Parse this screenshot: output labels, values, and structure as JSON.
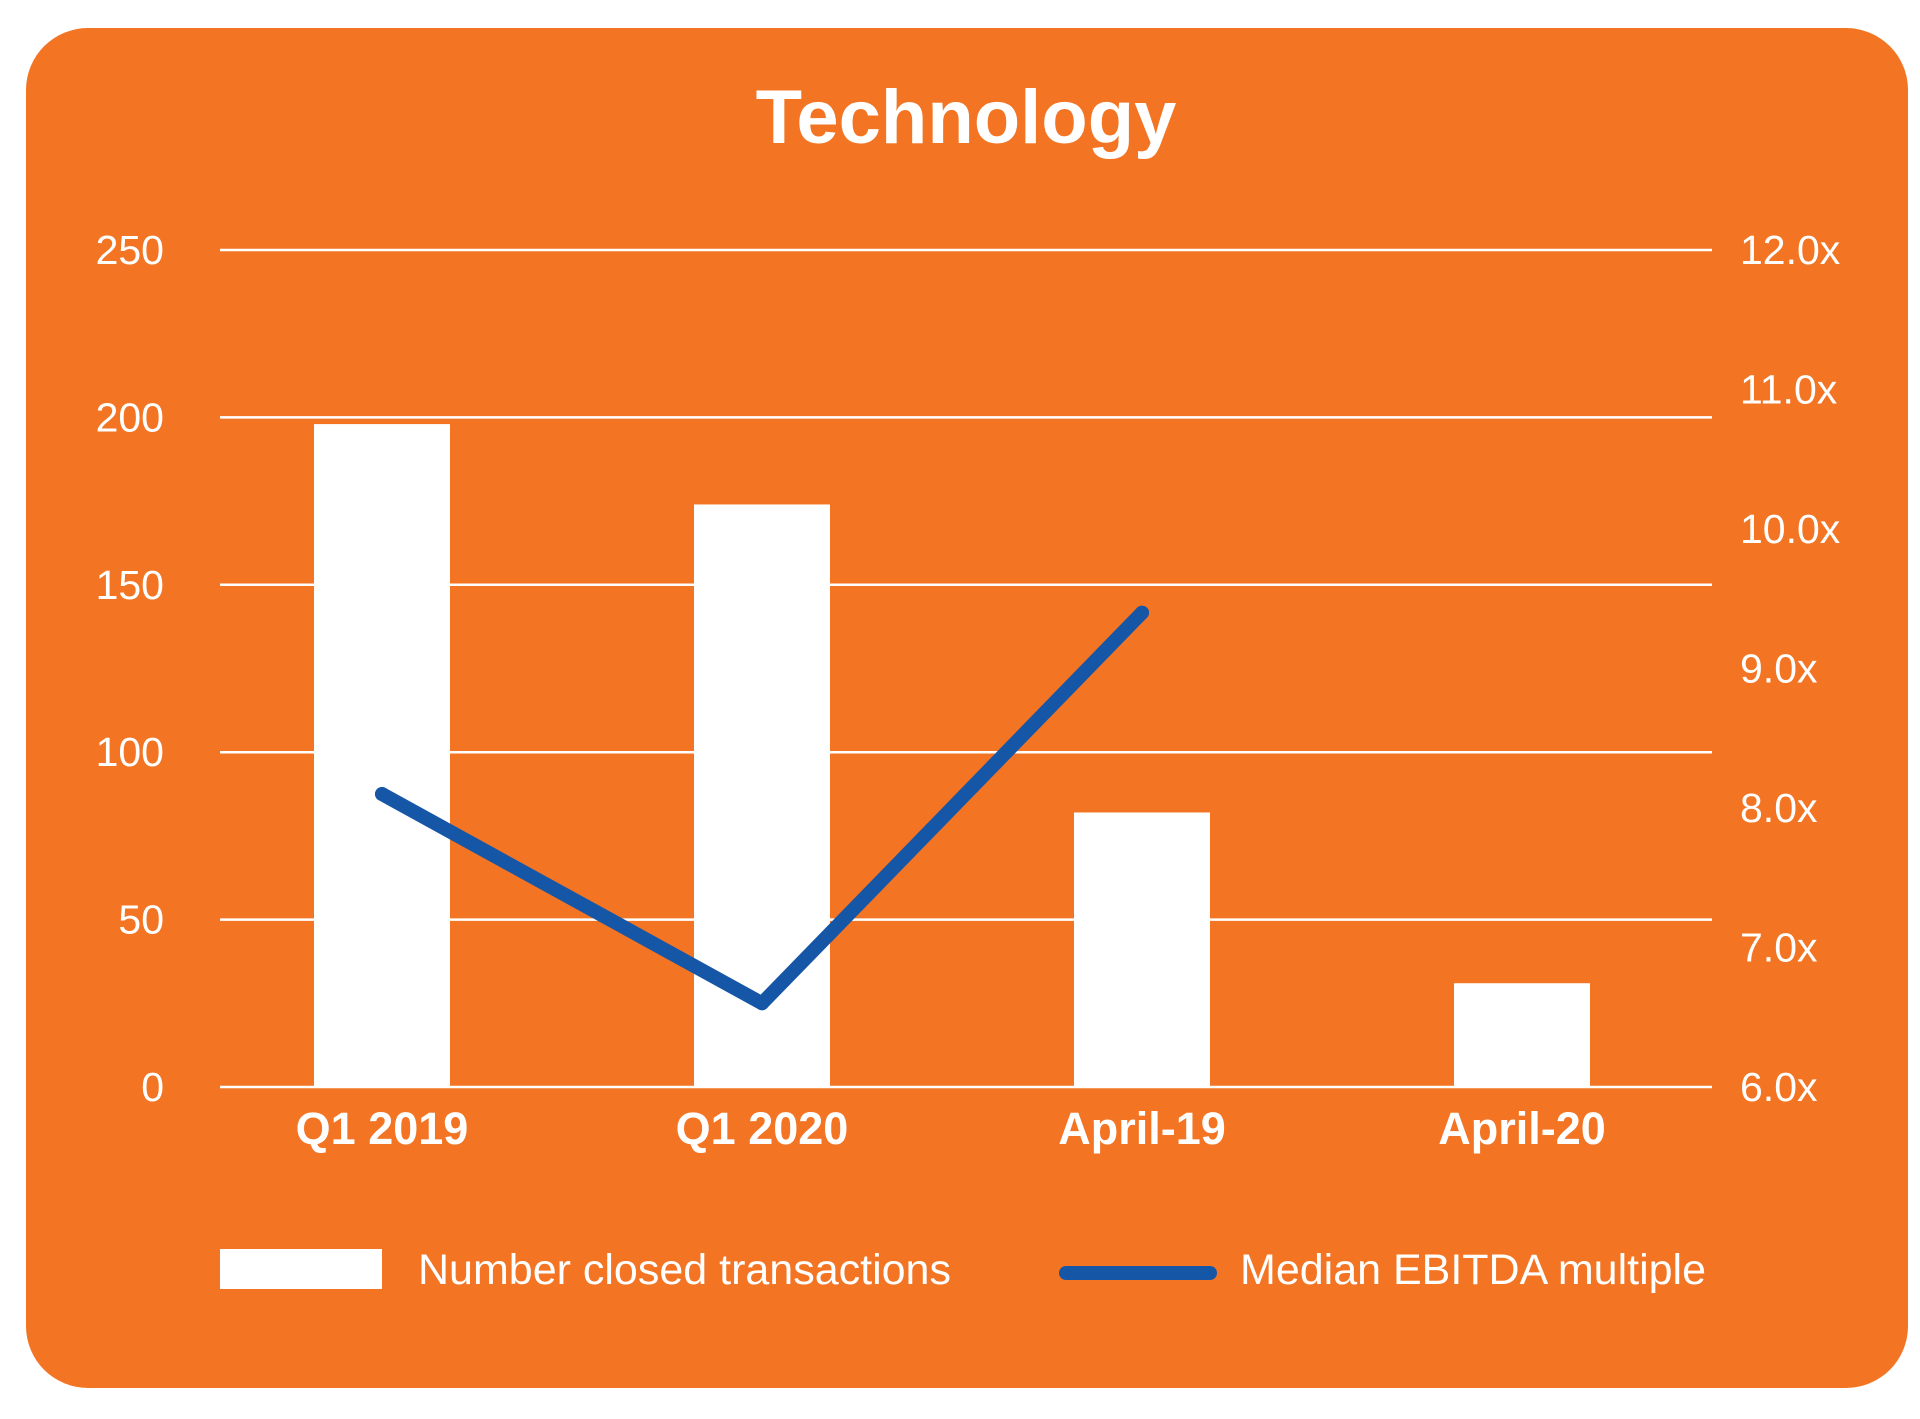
{
  "chart_data": {
    "type": "bar",
    "title": "Technology",
    "categories": [
      "Q1 2019",
      "Q1 2020",
      "April-19",
      "April-20"
    ],
    "series": [
      {
        "name": "Number closed transactions",
        "type": "bar",
        "axis": "left",
        "values": [
          198,
          174,
          82,
          31
        ]
      },
      {
        "name": "Median EBITDA multiple",
        "type": "line",
        "axis": "right",
        "values": [
          8.1,
          6.6,
          9.4,
          null
        ]
      }
    ],
    "ylim": [
      0,
      250
    ],
    "y_ticks": [
      0,
      50,
      100,
      150,
      200,
      250
    ],
    "y_tick_labels": [
      "0",
      "50",
      "100",
      "150",
      "200",
      "250"
    ],
    "y2lim": [
      6,
      12
    ],
    "y2_ticks": [
      6,
      7,
      8,
      9,
      10,
      11,
      12
    ],
    "y2_tick_labels": [
      "6.0x",
      "7.0x",
      "8.0x",
      "9.0x",
      "10.0x",
      "11.0x",
      "12.0x"
    ],
    "grid": true,
    "legend_position": "bottom",
    "colors": {
      "background": "#F37423",
      "bars": "#FFFFFF",
      "line": "#1656A6",
      "text": "#FFFFFF",
      "grid": "#FFFFFF"
    }
  }
}
